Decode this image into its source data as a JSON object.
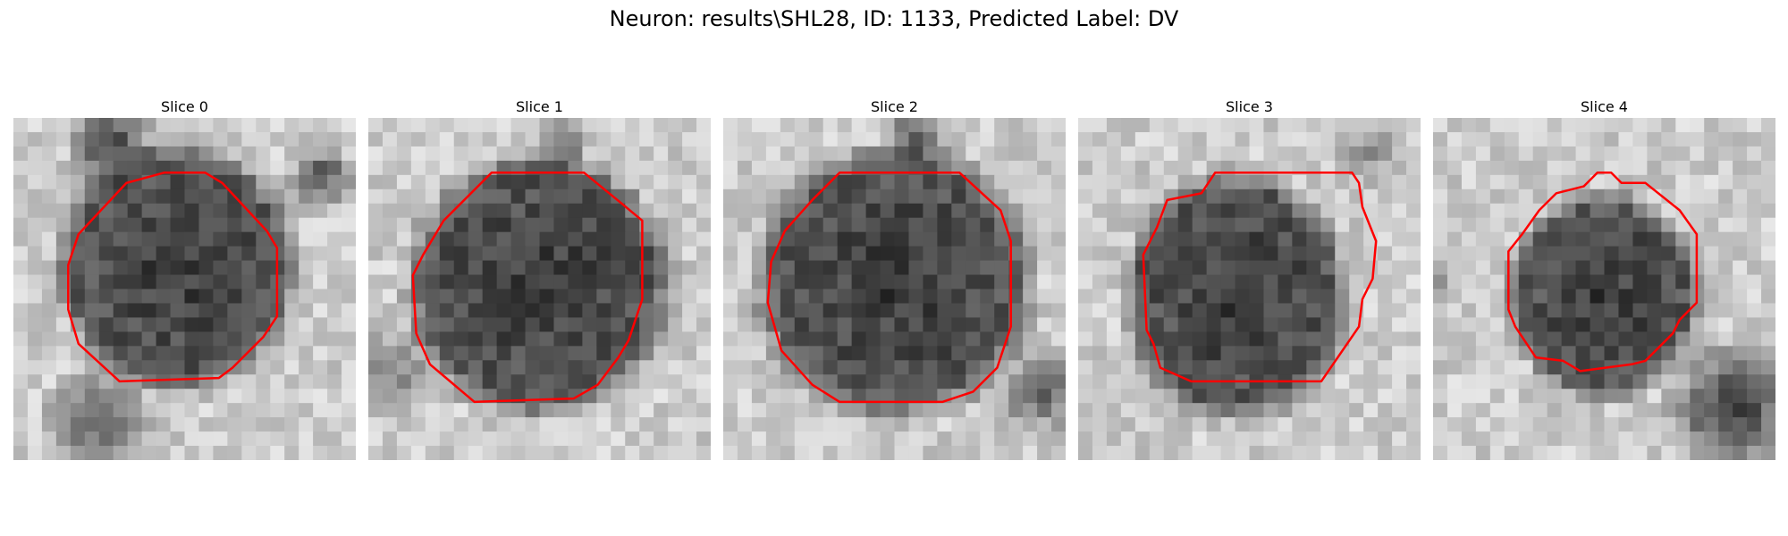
{
  "figure": {
    "title": "Neuron: results\\SHL28, ID: 1133, Predicted Label: DV",
    "contour_color": "#ff0000",
    "colormap": "grayscale"
  },
  "panels": [
    {
      "title": "Slice 0"
    },
    {
      "title": "Slice 1"
    },
    {
      "title": "Slice 2"
    },
    {
      "title": "Slice 3"
    },
    {
      "title": "Slice 4"
    }
  ]
}
